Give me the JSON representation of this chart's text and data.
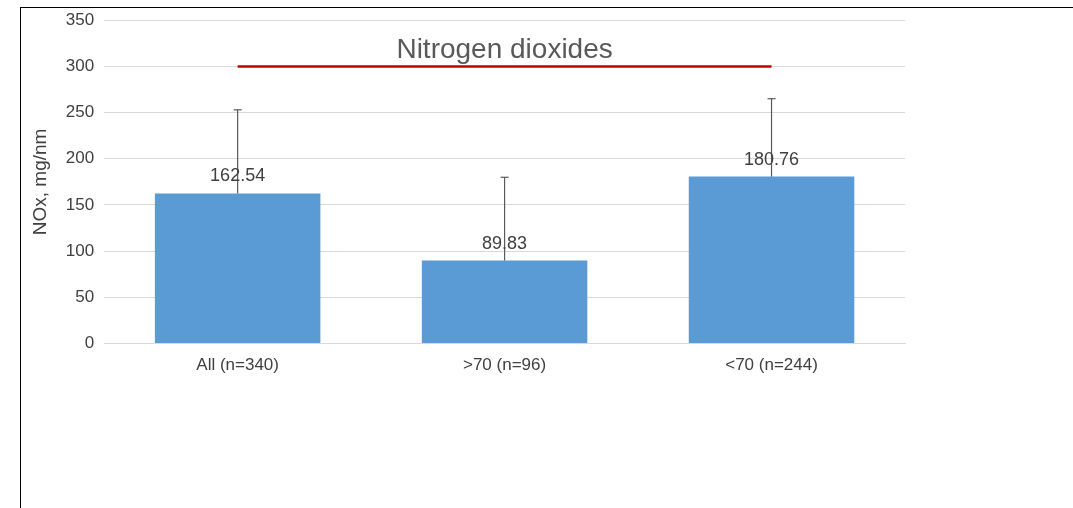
{
  "chart_data": {
    "type": "bar",
    "title": "Nitrogen dioxides",
    "ylabel": "NOx, mg/nm",
    "categories": [
      "All (n=340)",
      ">70 (n=96)",
      "<70 (n=244)"
    ],
    "values": [
      162.54,
      89.83,
      180.76
    ],
    "color": "#5b9bd5",
    "errors": [
      [
        162.54,
        253
      ],
      [
        89.83,
        180
      ],
      [
        180.76,
        265
      ]
    ],
    "ylim": [
      0,
      350
    ],
    "yticks": [
      0,
      50,
      100,
      150,
      200,
      250,
      300,
      350
    ],
    "grid": "y",
    "data_labels": true,
    "legend": false,
    "ref_lines": [
      {
        "axis": "y",
        "value": 300,
        "color": "#c00000"
      }
    ]
  }
}
